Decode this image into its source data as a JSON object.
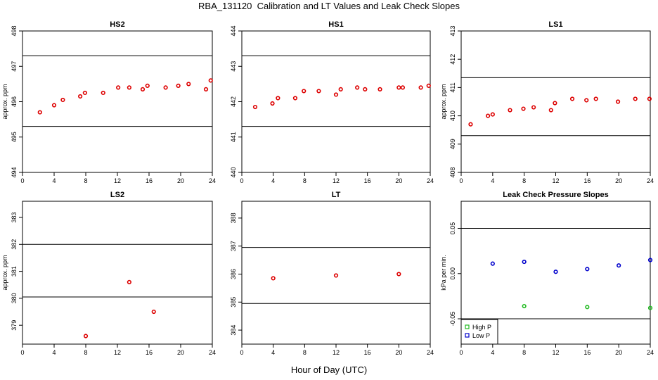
{
  "title": "RBA_131120  Calibration and LT Values and Leak Check Slopes",
  "xlabel": "Hour of Day (UTC)",
  "colors": {
    "points": "#dd0000",
    "high_p": "#22bb22",
    "low_p": "#0000cc",
    "ref_line": "#000000"
  },
  "chart_data": [
    {
      "type": "scatter",
      "title": "HS2",
      "ylabel": "approx. ppm",
      "xlim": [
        0,
        24
      ],
      "ylim": [
        494,
        498
      ],
      "xticks": [
        0,
        4,
        8,
        12,
        16,
        20,
        24
      ],
      "yticks": [
        494,
        495,
        496,
        497,
        498
      ],
      "hlines": [
        495.3,
        497.3
      ],
      "series": [
        {
          "x": [
            2.2,
            4,
            5.1,
            7.3,
            7.9,
            10.2,
            12.1,
            13.5,
            15.2,
            15.8,
            18.1,
            19.7,
            21,
            23.2,
            23.8
          ],
          "y": [
            495.7,
            495.9,
            496.05,
            496.15,
            496.25,
            496.25,
            496.4,
            496.4,
            496.35,
            496.45,
            496.4,
            496.45,
            496.5,
            496.35,
            496.6
          ]
        }
      ]
    },
    {
      "type": "scatter",
      "title": "HS1",
      "ylabel": "",
      "xlim": [
        0,
        24
      ],
      "ylim": [
        440,
        444
      ],
      "xticks": [
        0,
        4,
        8,
        12,
        16,
        20,
        24
      ],
      "yticks": [
        440,
        441,
        442,
        443,
        444
      ],
      "hlines": [
        441.3,
        443.3
      ],
      "series": [
        {
          "x": [
            1.7,
            3.9,
            4.6,
            6.8,
            7.9,
            9.8,
            12,
            12.6,
            14.7,
            15.7,
            17.6,
            20,
            20.5,
            22.8,
            23.8
          ],
          "y": [
            441.85,
            441.95,
            442.1,
            442.1,
            442.3,
            442.3,
            442.2,
            442.35,
            442.4,
            442.35,
            442.35,
            442.4,
            442.4,
            442.4,
            442.45
          ]
        }
      ]
    },
    {
      "type": "scatter",
      "title": "LS1",
      "ylabel": "approx. ppm",
      "xlim": [
        0,
        24
      ],
      "ylim": [
        408,
        413
      ],
      "xticks": [
        0,
        4,
        8,
        12,
        16,
        20,
        24
      ],
      "yticks": [
        408,
        409,
        410,
        411,
        412,
        413
      ],
      "hlines": [
        409.3,
        411.35
      ],
      "series": [
        {
          "x": [
            1.2,
            3.4,
            4,
            6.2,
            7.9,
            9.2,
            11.4,
            11.9,
            14.1,
            15.9,
            17.1,
            19.9,
            22.1,
            23.9
          ],
          "y": [
            409.7,
            410,
            410.05,
            410.2,
            410.25,
            410.3,
            410.2,
            410.45,
            410.6,
            410.55,
            410.6,
            410.5,
            410.6,
            410.6
          ]
        }
      ]
    },
    {
      "type": "scatter",
      "title": "LS2",
      "ylabel": "approx. ppm",
      "xlim": [
        0,
        24
      ],
      "ylim": [
        378.3,
        383.6
      ],
      "xticks": [
        0,
        4,
        8,
        12,
        16,
        20,
        24
      ],
      "yticks": [
        379,
        380,
        381,
        382,
        383
      ],
      "hlines": [
        380.05,
        382
      ],
      "series": [
        {
          "x": [
            8,
            13.5,
            16.6
          ],
          "y": [
            378.6,
            380.6,
            379.5
          ]
        }
      ]
    },
    {
      "type": "scatter",
      "title": "LT",
      "ylabel": "",
      "xlim": [
        0,
        24
      ],
      "ylim": [
        383.5,
        388.6
      ],
      "xticks": [
        0,
        4,
        8,
        12,
        16,
        20,
        24
      ],
      "yticks": [
        384,
        385,
        386,
        387,
        388
      ],
      "hlines": [
        384.95,
        386.95
      ],
      "series": [
        {
          "x": [
            4,
            12,
            20
          ],
          "y": [
            385.85,
            385.95,
            386
          ]
        }
      ]
    },
    {
      "type": "scatter",
      "title": "Leak Check Pressure Slopes",
      "ylabel": "kPa per min.",
      "xlim": [
        0,
        24
      ],
      "ylim": [
        -0.078,
        0.08
      ],
      "xticks": [
        0,
        4,
        8,
        12,
        16,
        20,
        24
      ],
      "yticks": [
        -0.05,
        0.0,
        0.05
      ],
      "ytick_labels": [
        "-0.05",
        "0.00",
        "0.05"
      ],
      "hlines": [
        -0.05,
        0.05
      ],
      "legend": {
        "position": "bottom-left",
        "entries": [
          "High P",
          "Low P"
        ]
      },
      "series": [
        {
          "name": "High P",
          "x": [
            8,
            16,
            24
          ],
          "y": [
            -0.036,
            -0.037,
            -0.038
          ]
        },
        {
          "name": "Low P",
          "x": [
            4,
            8,
            12,
            16,
            20,
            24
          ],
          "y": [
            0.011,
            0.013,
            0.002,
            0.005,
            0.009,
            0.015
          ]
        }
      ]
    }
  ]
}
